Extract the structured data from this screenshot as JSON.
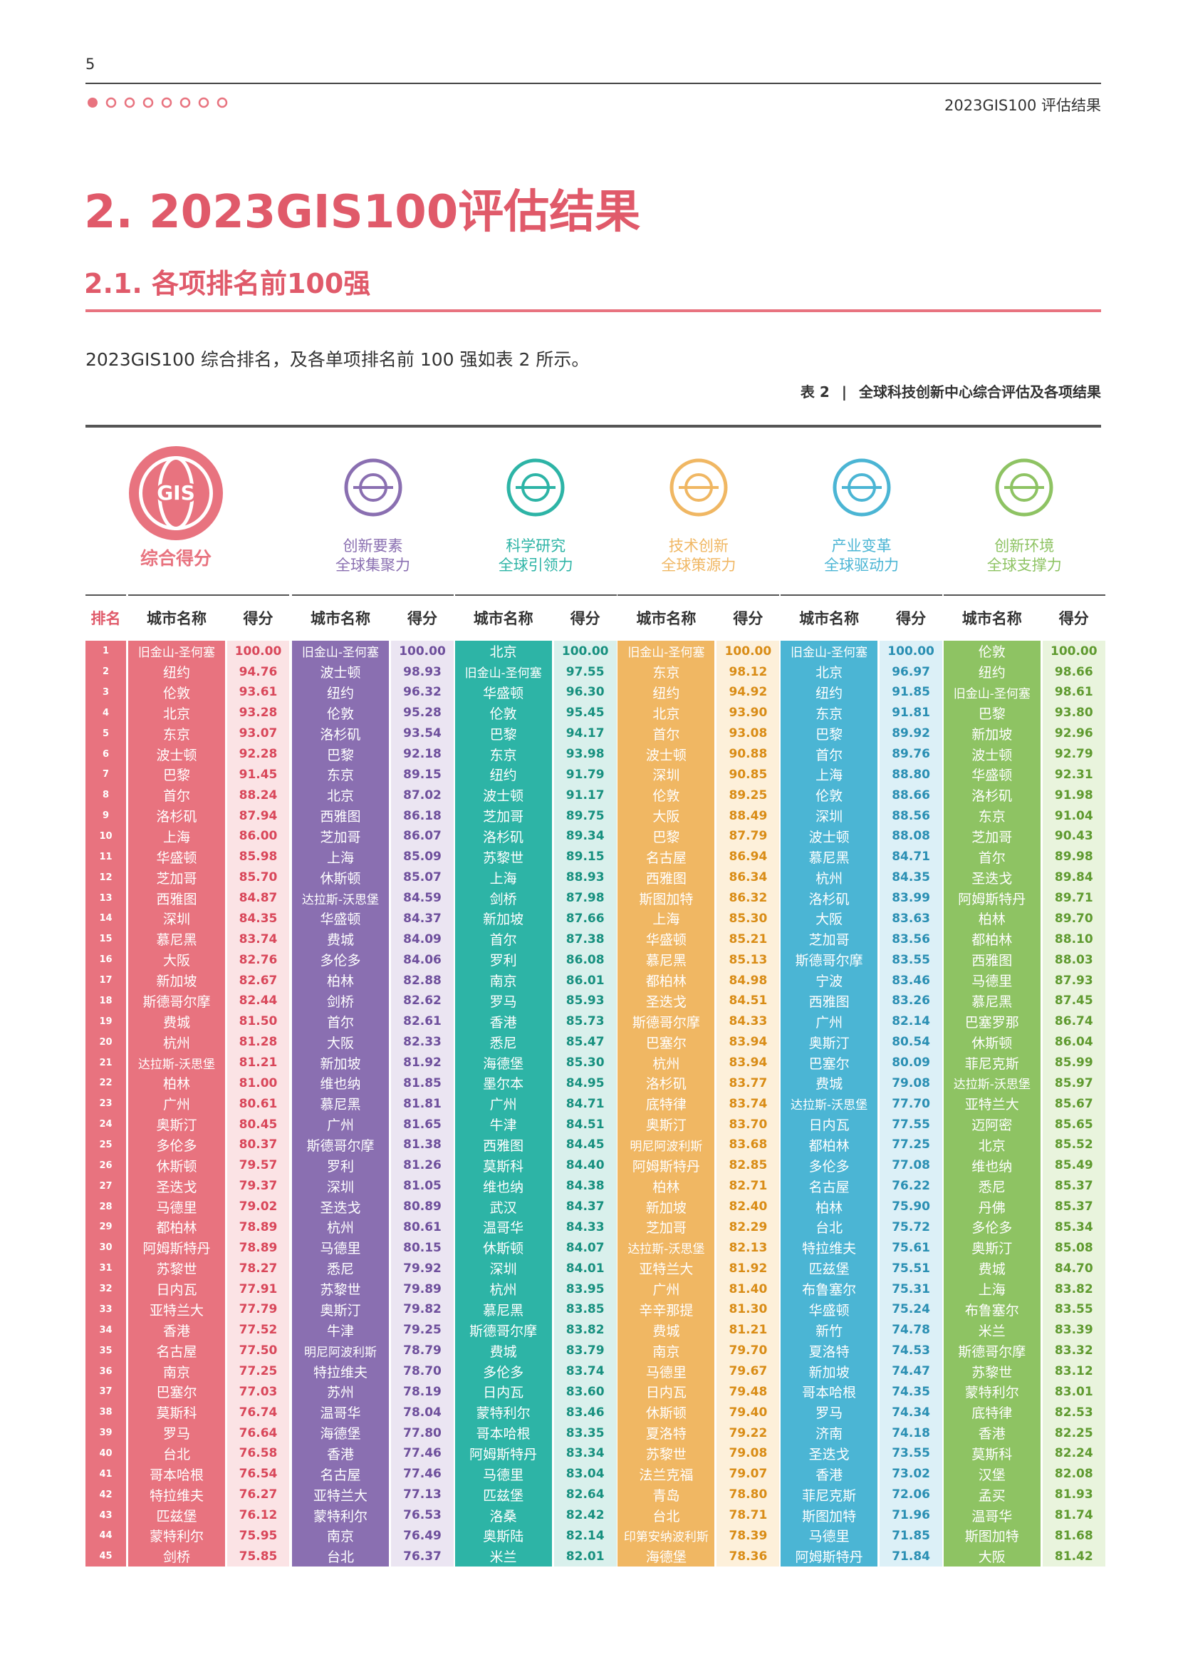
{
  "page_number": "5",
  "header_right": "2023GIS100 评估结果",
  "title": "2. 2023GIS100评估结果",
  "subtitle": "2.1. 各项排名前100强",
  "intro": "2023GIS100 综合排名，及各单项排名前 100 强如表 2 所示。",
  "table_caption": {
    "label": "表 2",
    "text": "全球科技创新中心综合评估及各项结果"
  },
  "table": {
    "headers": {
      "rank": "排名",
      "city": "城市名称",
      "score": "得分"
    },
    "ranks": [
      1,
      2,
      3,
      4,
      5,
      6,
      7,
      8,
      9,
      10,
      11,
      12,
      13,
      14,
      15,
      16,
      17,
      18,
      19,
      20,
      21,
      22,
      23,
      24,
      25,
      26,
      27,
      28,
      29,
      30,
      31,
      32,
      33,
      34,
      35,
      36,
      37,
      38,
      39,
      40,
      41,
      42,
      43,
      44,
      45
    ],
    "columns": [
      {
        "label": [
          "综合得分"
        ],
        "icon_text": "GIS",
        "cities": [
          "旧金山-圣何塞",
          "纽约",
          "伦敦",
          "北京",
          "东京",
          "波士顿",
          "巴黎",
          "首尔",
          "洛杉矶",
          "上海",
          "华盛顿",
          "芝加哥",
          "西雅图",
          "深圳",
          "慕尼黑",
          "大阪",
          "新加坡",
          "斯德哥尔摩",
          "费城",
          "杭州",
          "达拉斯-沃思堡",
          "柏林",
          "广州",
          "奥斯汀",
          "多伦多",
          "休斯顿",
          "圣迭戈",
          "马德里",
          "都柏林",
          "阿姆斯特丹",
          "苏黎世",
          "日内瓦",
          "亚特兰大",
          "香港",
          "名古屋",
          "南京",
          "巴塞尔",
          "莫斯科",
          "罗马",
          "台北",
          "哥本哈根",
          "特拉维夫",
          "匹兹堡",
          "蒙特利尔",
          "剑桥"
        ],
        "scores": [
          "100.00",
          "94.76",
          "93.61",
          "93.28",
          "93.07",
          "92.28",
          "91.45",
          "88.24",
          "87.94",
          "86.00",
          "85.98",
          "85.70",
          "84.87",
          "84.35",
          "83.74",
          "82.76",
          "82.67",
          "82.44",
          "81.50",
          "81.28",
          "81.21",
          "81.00",
          "80.61",
          "80.45",
          "80.37",
          "79.57",
          "79.37",
          "79.02",
          "78.89",
          "78.89",
          "78.27",
          "77.91",
          "77.79",
          "77.52",
          "77.50",
          "77.25",
          "77.03",
          "76.74",
          "76.64",
          "76.58",
          "76.54",
          "76.27",
          "76.12",
          "75.95",
          "75.85"
        ]
      },
      {
        "label": [
          "创新要素",
          "全球集聚力"
        ],
        "cities": [
          "旧金山-圣何塞",
          "波士顿",
          "纽约",
          "伦敦",
          "洛杉矶",
          "巴黎",
          "东京",
          "北京",
          "西雅图",
          "芝加哥",
          "上海",
          "休斯顿",
          "达拉斯-沃思堡",
          "华盛顿",
          "费城",
          "多伦多",
          "柏林",
          "剑桥",
          "首尔",
          "大阪",
          "新加坡",
          "维也纳",
          "慕尼黑",
          "广州",
          "斯德哥尔摩",
          "罗利",
          "深圳",
          "圣迭戈",
          "杭州",
          "马德里",
          "悉尼",
          "苏黎世",
          "奥斯汀",
          "牛津",
          "明尼阿波利斯",
          "特拉维夫",
          "苏州",
          "温哥华",
          "海德堡",
          "香港",
          "名古屋",
          "亚特兰大",
          "蒙特利尔",
          "南京",
          "台北"
        ],
        "scores": [
          "100.00",
          "98.93",
          "96.32",
          "95.28",
          "93.54",
          "92.18",
          "89.15",
          "87.02",
          "86.18",
          "86.07",
          "85.09",
          "85.07",
          "84.59",
          "84.37",
          "84.09",
          "84.06",
          "82.88",
          "82.62",
          "82.61",
          "82.33",
          "81.92",
          "81.85",
          "81.81",
          "81.65",
          "81.38",
          "81.26",
          "81.05",
          "80.89",
          "80.61",
          "80.15",
          "79.92",
          "79.89",
          "79.82",
          "79.25",
          "78.79",
          "78.70",
          "78.19",
          "78.04",
          "77.80",
          "77.46",
          "77.46",
          "77.13",
          "76.53",
          "76.49",
          "76.37"
        ]
      },
      {
        "label": [
          "科学研究",
          "全球引领力"
        ],
        "cities": [
          "北京",
          "旧金山-圣何塞",
          "华盛顿",
          "伦敦",
          "巴黎",
          "东京",
          "纽约",
          "波士顿",
          "芝加哥",
          "洛杉矶",
          "苏黎世",
          "上海",
          "剑桥",
          "新加坡",
          "首尔",
          "罗利",
          "南京",
          "罗马",
          "香港",
          "悉尼",
          "海德堡",
          "墨尔本",
          "广州",
          "牛津",
          "西雅图",
          "莫斯科",
          "维也纳",
          "武汉",
          "温哥华",
          "休斯顿",
          "深圳",
          "杭州",
          "慕尼黑",
          "斯德哥尔摩",
          "费城",
          "多伦多",
          "日内瓦",
          "蒙特利尔",
          "哥本哈根",
          "阿姆斯特丹",
          "马德里",
          "匹兹堡",
          "洛桑",
          "奥斯陆",
          "米兰"
        ],
        "scores": [
          "100.00",
          "97.55",
          "96.30",
          "95.45",
          "94.17",
          "93.98",
          "91.79",
          "91.17",
          "89.75",
          "89.34",
          "89.15",
          "88.93",
          "87.98",
          "87.66",
          "87.38",
          "86.08",
          "86.01",
          "85.93",
          "85.73",
          "85.47",
          "85.30",
          "84.95",
          "84.71",
          "84.51",
          "84.45",
          "84.40",
          "84.38",
          "84.37",
          "84.33",
          "84.07",
          "84.01",
          "83.95",
          "83.85",
          "83.82",
          "83.79",
          "83.74",
          "83.60",
          "83.46",
          "83.35",
          "83.34",
          "83.04",
          "82.64",
          "82.42",
          "82.14",
          "82.01"
        ]
      },
      {
        "label": [
          "技术创新",
          "全球策源力"
        ],
        "cities": [
          "旧金山-圣何塞",
          "东京",
          "纽约",
          "北京",
          "首尔",
          "波士顿",
          "深圳",
          "伦敦",
          "大阪",
          "巴黎",
          "名古屋",
          "西雅图",
          "斯图加特",
          "上海",
          "华盛顿",
          "慕尼黑",
          "都柏林",
          "圣迭戈",
          "斯德哥尔摩",
          "巴塞尔",
          "杭州",
          "洛杉矶",
          "底特律",
          "奥斯汀",
          "明尼阿波利斯",
          "阿姆斯特丹",
          "柏林",
          "新加坡",
          "芝加哥",
          "达拉斯-沃思堡",
          "亚特兰大",
          "广州",
          "辛辛那提",
          "费城",
          "南京",
          "马德里",
          "日内瓦",
          "休斯顿",
          "夏洛特",
          "苏黎世",
          "法兰克福",
          "青岛",
          "台北",
          "印第安纳波利斯",
          "海德堡"
        ],
        "scores": [
          "100.00",
          "98.12",
          "94.92",
          "93.90",
          "93.08",
          "90.88",
          "90.85",
          "89.25",
          "88.49",
          "87.79",
          "86.94",
          "86.34",
          "86.32",
          "85.30",
          "85.21",
          "85.13",
          "84.98",
          "84.51",
          "84.33",
          "83.94",
          "83.94",
          "83.77",
          "83.74",
          "83.70",
          "83.68",
          "82.85",
          "82.71",
          "82.40",
          "82.29",
          "82.13",
          "81.92",
          "81.40",
          "81.30",
          "81.21",
          "79.70",
          "79.67",
          "79.48",
          "79.40",
          "79.22",
          "79.08",
          "79.07",
          "78.80",
          "78.71",
          "78.39",
          "78.36"
        ]
      },
      {
        "label": [
          "产业变革",
          "全球驱动力"
        ],
        "cities": [
          "旧金山-圣何塞",
          "北京",
          "纽约",
          "东京",
          "巴黎",
          "首尔",
          "上海",
          "伦敦",
          "深圳",
          "波士顿",
          "慕尼黑",
          "杭州",
          "洛杉矶",
          "大阪",
          "芝加哥",
          "斯德哥尔摩",
          "宁波",
          "西雅图",
          "广州",
          "奥斯汀",
          "巴塞尔",
          "费城",
          "达拉斯-沃思堡",
          "日内瓦",
          "都柏林",
          "多伦多",
          "名古屋",
          "柏林",
          "台北",
          "特拉维夫",
          "匹兹堡",
          "布鲁塞尔",
          "华盛顿",
          "新竹",
          "夏洛特",
          "新加坡",
          "哥本哈根",
          "罗马",
          "济南",
          "圣迭戈",
          "香港",
          "菲尼克斯",
          "斯图加特",
          "马德里",
          "阿姆斯特丹"
        ],
        "scores": [
          "100.00",
          "96.97",
          "91.85",
          "91.81",
          "89.92",
          "89.76",
          "88.80",
          "88.66",
          "88.56",
          "88.08",
          "84.71",
          "84.35",
          "83.99",
          "83.63",
          "83.56",
          "83.55",
          "83.46",
          "83.26",
          "82.14",
          "80.54",
          "80.09",
          "79.08",
          "77.70",
          "77.55",
          "77.25",
          "77.08",
          "76.22",
          "75.90",
          "75.72",
          "75.61",
          "75.51",
          "75.31",
          "75.24",
          "74.78",
          "74.53",
          "74.47",
          "74.35",
          "74.34",
          "74.18",
          "73.55",
          "73.02",
          "72.06",
          "71.96",
          "71.85",
          "71.84"
        ]
      },
      {
        "label": [
          "创新环境",
          "全球支撑力"
        ],
        "cities": [
          "伦敦",
          "纽约",
          "旧金山-圣何塞",
          "巴黎",
          "新加坡",
          "波士顿",
          "华盛顿",
          "洛杉矶",
          "东京",
          "芝加哥",
          "首尔",
          "圣迭戈",
          "阿姆斯特丹",
          "柏林",
          "都柏林",
          "西雅图",
          "马德里",
          "慕尼黑",
          "巴塞罗那",
          "休斯顿",
          "菲尼克斯",
          "达拉斯-沃思堡",
          "亚特兰大",
          "迈阿密",
          "北京",
          "维也纳",
          "悉尼",
          "丹佛",
          "多伦多",
          "奥斯汀",
          "费城",
          "上海",
          "布鲁塞尔",
          "米兰",
          "斯德哥尔摩",
          "苏黎世",
          "蒙特利尔",
          "底特律",
          "香港",
          "莫斯科",
          "汉堡",
          "孟买",
          "温哥华",
          "斯图加特",
          "大阪"
        ],
        "scores": [
          "100.00",
          "98.66",
          "98.61",
          "93.80",
          "92.96",
          "92.79",
          "92.31",
          "91.98",
          "91.04",
          "90.43",
          "89.98",
          "89.84",
          "89.71",
          "89.70",
          "88.10",
          "88.03",
          "87.93",
          "87.45",
          "86.74",
          "86.04",
          "85.99",
          "85.97",
          "85.67",
          "85.65",
          "85.52",
          "85.49",
          "85.37",
          "85.37",
          "85.34",
          "85.08",
          "84.70",
          "83.82",
          "83.55",
          "83.39",
          "83.32",
          "83.12",
          "83.01",
          "82.53",
          "82.25",
          "82.24",
          "82.08",
          "81.93",
          "81.74",
          "81.68",
          "81.42"
        ]
      }
    ]
  }
}
